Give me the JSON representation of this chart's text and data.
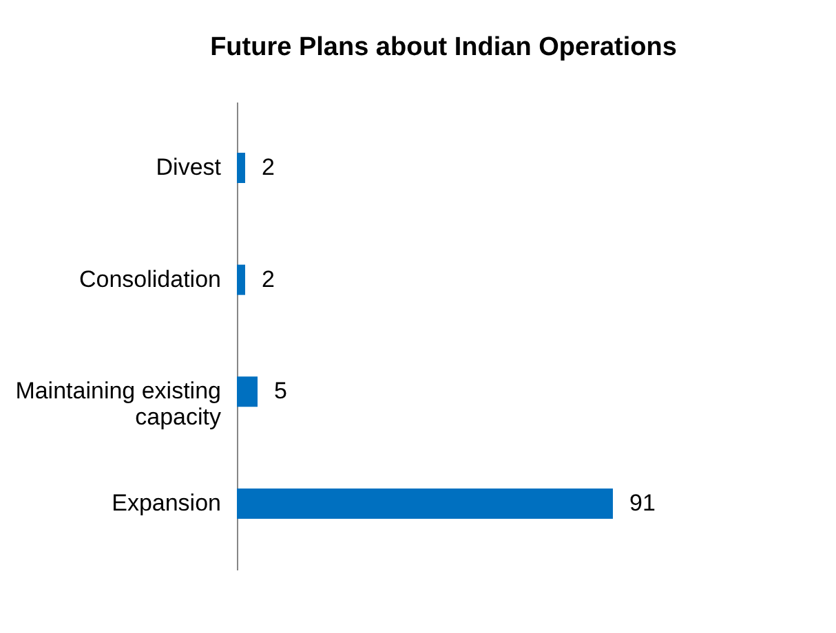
{
  "chart_data": {
    "type": "bar",
    "title": "Future Plans about Indian Operations",
    "orientation": "horizontal",
    "categories": [
      "Divest",
      "Consolidation",
      "Maintaining existing capacity",
      "Expansion"
    ],
    "values": [
      2,
      2,
      5,
      91
    ],
    "color": "#0070c0",
    "data_labels": true
  }
}
